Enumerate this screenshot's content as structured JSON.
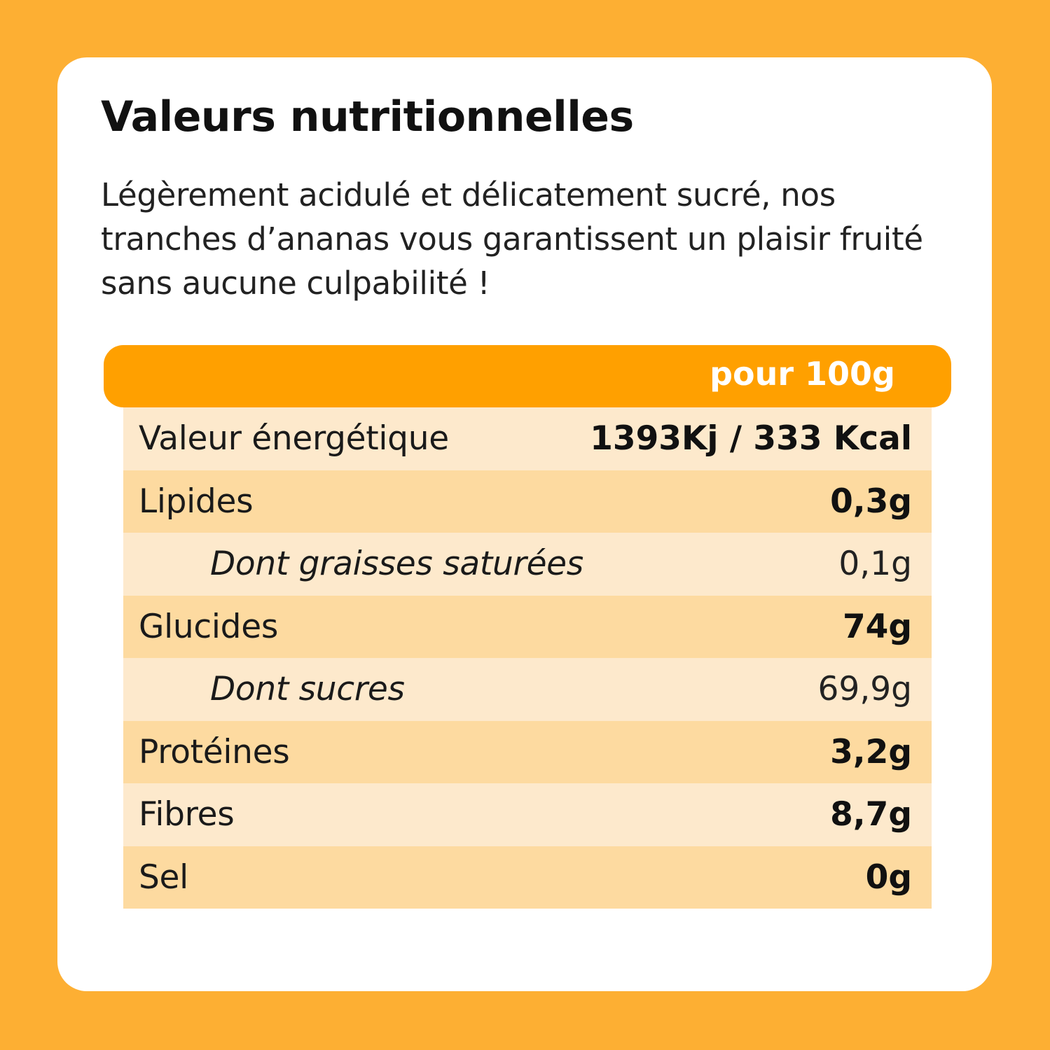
{
  "card": {
    "title": "Valeurs nutritionnelles",
    "description": "Légèrement acidulé et délicatement sucré, nos tranches d’ananas vous garantissent un plaisir fruité sans aucune culpabilité !"
  },
  "table": {
    "header": "pour 100g",
    "rows": [
      {
        "label": "Valeur énergétique",
        "value": "1393Kj / 333 Kcal",
        "sub": false,
        "bold_value": true
      },
      {
        "label": "Lipides",
        "value": "0,3g",
        "sub": false,
        "bold_value": true
      },
      {
        "label": "Dont graisses saturées",
        "value": "0,1g",
        "sub": true,
        "bold_value": false
      },
      {
        "label": "Glucides",
        "value": "74g",
        "sub": false,
        "bold_value": true
      },
      {
        "label": "Dont sucres",
        "value": "69,9g",
        "sub": true,
        "bold_value": false
      },
      {
        "label": "Protéines",
        "value": "3,2g",
        "sub": false,
        "bold_value": true
      },
      {
        "label": "Fibres",
        "value": "8,7g",
        "sub": false,
        "bold_value": true
      },
      {
        "label": "Sel",
        "value": "0g",
        "sub": false,
        "bold_value": true
      }
    ]
  },
  "colors": {
    "background": "#FDAF33",
    "header_bar": "#FFA000",
    "row_light": "#FDE9CC",
    "row_dark": "#FDDAA0"
  }
}
